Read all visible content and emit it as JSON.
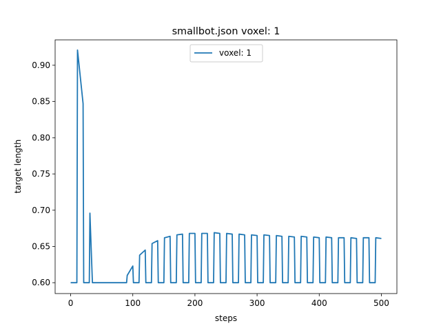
{
  "chart_data": {
    "type": "line",
    "title": "smallbot.json voxel: 1",
    "xlabel": "steps",
    "ylabel": "target length",
    "xlim": [
      -25,
      525
    ],
    "ylim": [
      0.585,
      0.935
    ],
    "xticks": [
      0,
      100,
      200,
      300,
      400,
      500
    ],
    "xtick_labels": [
      "0",
      "100",
      "200",
      "300",
      "400",
      "500"
    ],
    "yticks": [
      0.6,
      0.65,
      0.7,
      0.75,
      0.8,
      0.85,
      0.9
    ],
    "ytick_labels": [
      "0.60",
      "0.65",
      "0.70",
      "0.75",
      "0.80",
      "0.85",
      "0.90"
    ],
    "grid": false,
    "legend_position": "upper center",
    "colors": {
      "series": "#1f77b4"
    },
    "series": [
      {
        "name": "voxel: 1",
        "x": [
          0,
          10,
          11,
          20,
          21,
          30,
          31,
          35,
          40,
          50,
          60,
          70,
          80,
          90,
          91,
          100,
          101,
          110,
          111,
          120,
          121,
          130,
          131,
          140,
          141,
          150,
          151,
          160,
          161,
          170,
          171,
          180,
          181,
          190,
          191,
          200,
          201,
          210,
          211,
          220,
          221,
          230,
          231,
          240,
          241,
          250,
          251,
          260,
          261,
          270,
          271,
          280,
          281,
          290,
          291,
          300,
          301,
          310,
          311,
          320,
          321,
          330,
          331,
          340,
          341,
          350,
          351,
          360,
          361,
          370,
          371,
          380,
          381,
          390,
          391,
          400,
          401,
          410,
          411,
          420,
          421,
          430,
          431,
          440,
          441,
          450,
          451,
          460,
          461,
          470,
          471,
          480,
          481,
          490,
          491,
          500
        ],
        "y": [
          0.6,
          0.6,
          0.921,
          0.847,
          0.6,
          0.6,
          0.696,
          0.6,
          0.6,
          0.6,
          0.6,
          0.6,
          0.6,
          0.6,
          0.61,
          0.623,
          0.6,
          0.6,
          0.638,
          0.645,
          0.6,
          0.6,
          0.654,
          0.658,
          0.6,
          0.6,
          0.662,
          0.664,
          0.6,
          0.6,
          0.666,
          0.667,
          0.6,
          0.6,
          0.668,
          0.668,
          0.6,
          0.6,
          0.668,
          0.668,
          0.6,
          0.6,
          0.669,
          0.668,
          0.6,
          0.6,
          0.668,
          0.667,
          0.6,
          0.6,
          0.667,
          0.666,
          0.6,
          0.6,
          0.666,
          0.665,
          0.6,
          0.6,
          0.666,
          0.665,
          0.6,
          0.6,
          0.665,
          0.664,
          0.6,
          0.6,
          0.664,
          0.663,
          0.6,
          0.6,
          0.664,
          0.663,
          0.6,
          0.6,
          0.663,
          0.662,
          0.6,
          0.6,
          0.663,
          0.662,
          0.6,
          0.6,
          0.662,
          0.662,
          0.6,
          0.6,
          0.662,
          0.661,
          0.6,
          0.6,
          0.662,
          0.662,
          0.6,
          0.6,
          0.662,
          0.661
        ]
      }
    ]
  }
}
